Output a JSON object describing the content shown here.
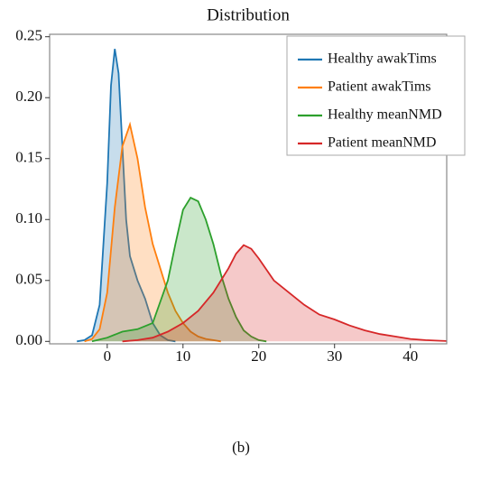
{
  "chart_data": {
    "type": "kde",
    "title": "Distribution",
    "caption": "(b)",
    "xlim": [
      -7.6,
      44.8
    ],
    "ylim": [
      -0.002,
      0.252
    ],
    "xticks": [
      0,
      10,
      20,
      30,
      40
    ],
    "yticks": [
      {
        "value": 0,
        "label": "0.00"
      },
      {
        "value": 0.05,
        "label": "0.05"
      },
      {
        "value": 0.1,
        "label": "0.10"
      },
      {
        "value": 0.15,
        "label": "0.15"
      },
      {
        "value": 0.2,
        "label": "0.20"
      },
      {
        "value": 0.25,
        "label": "0.25"
      }
    ],
    "legend": "upper right",
    "series": [
      {
        "name": "Healthy awakTims",
        "color": "#1f77b4",
        "x": [
          -4,
          -3,
          -2,
          -1,
          0,
          0.5,
          1,
          1.5,
          2,
          2.5,
          3,
          4,
          5,
          6,
          7,
          8,
          9
        ],
        "values": [
          0,
          0.001,
          0.005,
          0.03,
          0.13,
          0.21,
          0.24,
          0.22,
          0.16,
          0.1,
          0.07,
          0.05,
          0.035,
          0.015,
          0.005,
          0.001,
          0
        ]
      },
      {
        "name": "Patient awakTims",
        "color": "#ff7f0e",
        "x": [
          -3,
          -2,
          -1,
          0,
          1,
          2,
          3,
          4,
          5,
          6,
          7,
          8,
          9,
          10,
          11,
          12,
          13,
          14,
          15
        ],
        "values": [
          0,
          0.002,
          0.01,
          0.04,
          0.11,
          0.16,
          0.178,
          0.15,
          0.11,
          0.08,
          0.06,
          0.04,
          0.025,
          0.015,
          0.008,
          0.004,
          0.002,
          0.001,
          0
        ]
      },
      {
        "name": "Healthy meanNMD",
        "color": "#2ca02c",
        "x": [
          -2,
          0,
          2,
          4,
          6,
          8,
          9,
          10,
          11,
          12,
          13,
          14,
          15,
          16,
          17,
          18,
          19,
          20,
          21
        ],
        "values": [
          0,
          0.003,
          0.008,
          0.01,
          0.015,
          0.05,
          0.08,
          0.108,
          0.118,
          0.115,
          0.1,
          0.08,
          0.055,
          0.035,
          0.02,
          0.009,
          0.004,
          0.001,
          0
        ]
      },
      {
        "name": "Patient meanNMD",
        "color": "#d62728",
        "x": [
          2,
          4,
          6,
          8,
          10,
          12,
          14,
          16,
          17,
          18,
          19,
          20,
          22,
          24,
          26,
          28,
          30,
          32,
          34,
          36,
          38,
          40,
          42,
          44,
          46
        ],
        "values": [
          0,
          0.001,
          0.003,
          0.008,
          0.015,
          0.025,
          0.04,
          0.06,
          0.072,
          0.079,
          0.076,
          0.068,
          0.05,
          0.04,
          0.03,
          0.022,
          0.018,
          0.013,
          0.009,
          0.006,
          0.004,
          0.002,
          0.001,
          0.0005,
          0
        ]
      }
    ]
  }
}
